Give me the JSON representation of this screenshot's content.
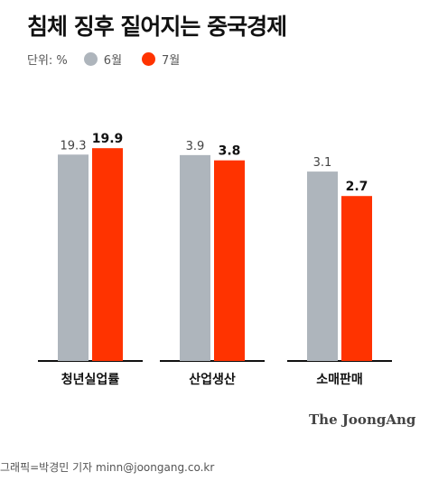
{
  "title": "침체 징후 짙어지는 중국경제",
  "legend": {
    "unit": "단위: %",
    "items": [
      {
        "label": "6월",
        "color": "#aeb5bc"
      },
      {
        "label": "7월",
        "color": "#ff3300"
      }
    ]
  },
  "chart_data": {
    "type": "bar",
    "categories": [
      "청년실업률",
      "산업생산",
      "소매판매"
    ],
    "series": [
      {
        "name": "6월",
        "values": [
          19.3,
          3.9,
          3.1
        ],
        "color": "#aeb5bc"
      },
      {
        "name": "7월",
        "values": [
          19.9,
          3.8,
          2.7
        ],
        "color": "#ff3300"
      }
    ],
    "value_labels": [
      [
        "19.3",
        "3.9",
        "3.1"
      ],
      [
        "19.9",
        "3.8",
        "2.7"
      ]
    ],
    "grid": false
  },
  "brand": "The JoongAng",
  "credit": "그래픽=박경민 기자 minn@joongang.co.kr"
}
